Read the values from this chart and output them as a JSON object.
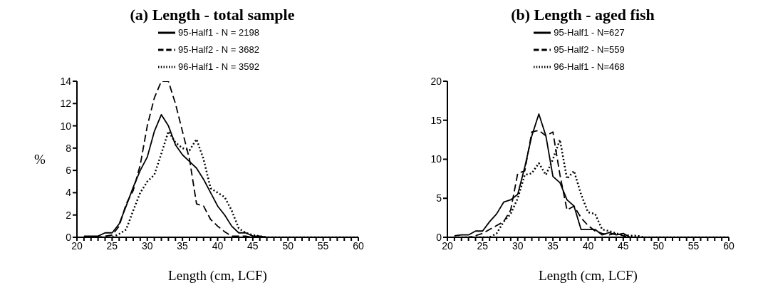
{
  "chart_data": [
    {
      "type": "line",
      "title": "(a) Length - total sample",
      "xlabel": "Length (cm, LCF)",
      "ylabel": "%",
      "x": [
        21,
        22,
        23,
        24,
        25,
        26,
        27,
        28,
        29,
        30,
        31,
        32,
        33,
        34,
        35,
        36,
        37,
        38,
        39,
        40,
        41,
        42,
        43,
        44,
        45,
        46,
        47,
        48,
        49,
        50,
        51,
        52,
        53,
        54,
        55,
        56,
        57,
        58,
        59,
        60
      ],
      "series": [
        {
          "name": "95-Half1 - N = 2198",
          "color": "#000000",
          "line_style": "solid",
          "values": [
            0.1,
            0.1,
            0.1,
            0.4,
            0.4,
            1.2,
            2.8,
            4.5,
            6,
            7.2,
            9.5,
            11,
            10,
            8.3,
            7.4,
            6.8,
            6.2,
            5.2,
            4,
            2.8,
            2,
            1,
            0.4,
            0.4,
            0.1,
            0.1,
            0,
            0,
            0,
            0,
            0,
            0,
            0,
            0,
            0,
            0,
            0,
            0,
            0,
            0
          ]
        },
        {
          "name": "95-Half2 - N = 3682",
          "color": "#000000",
          "line_style": "dashed",
          "values": [
            0,
            0,
            0,
            0.1,
            0.2,
            1,
            3,
            4.2,
            6.5,
            10,
            12.5,
            14,
            14,
            12,
            9.5,
            7,
            3,
            2.8,
            1.6,
            1,
            0.5,
            0.1,
            0.1,
            0.1,
            0,
            0,
            0,
            0,
            0,
            0,
            0,
            0,
            0,
            0,
            0,
            0,
            0,
            0,
            0,
            0
          ]
        },
        {
          "name": "96-Half1 - N = 3592",
          "color": "#000000",
          "line_style": "dotted",
          "values": [
            0,
            0,
            0,
            0,
            0,
            0.3,
            0.7,
            2.4,
            4,
            5,
            5.6,
            7.5,
            9.5,
            8.5,
            8,
            7.8,
            8.8,
            7,
            4.4,
            4,
            3.6,
            2.4,
            0.8,
            0.4,
            0.2,
            0.1,
            0,
            0,
            0,
            0,
            0,
            0,
            0,
            0,
            0,
            0,
            0,
            0,
            0,
            0
          ]
        }
      ],
      "xlim": [
        20,
        60
      ],
      "xticks": [
        20,
        {
          "value": 21,
          "label": null
        },
        {
          "value": 22,
          "label": null
        },
        {
          "value": 23,
          "label": null
        },
        {
          "value": 24,
          "label": null
        },
        25,
        {
          "value": 26,
          "label": null
        },
        {
          "value": 27,
          "label": null
        },
        {
          "value": 28,
          "label": null
        },
        {
          "value": 29,
          "label": null
        },
        30,
        {
          "value": 31,
          "label": null
        },
        {
          "value": 32,
          "label": null
        },
        {
          "value": 33,
          "label": null
        },
        {
          "value": 34,
          "label": null
        },
        35,
        {
          "value": 36,
          "label": null
        },
        {
          "value": 37,
          "label": null
        },
        {
          "value": 38,
          "label": null
        },
        {
          "value": 39,
          "label": null
        },
        40,
        {
          "value": 41,
          "label": null
        },
        {
          "value": 42,
          "label": null
        },
        {
          "value": 43,
          "label": null
        },
        {
          "value": 44,
          "label": null
        },
        45,
        {
          "value": 46,
          "label": null
        },
        {
          "value": 47,
          "label": null
        },
        {
          "value": 48,
          "label": null
        },
        {
          "value": 49,
          "label": null
        },
        50,
        {
          "value": 51,
          "label": null
        },
        {
          "value": 52,
          "label": null
        },
        {
          "value": 53,
          "label": null
        },
        {
          "value": 54,
          "label": null
        },
        55,
        {
          "value": 56,
          "label": null
        },
        {
          "value": 57,
          "label": null
        },
        {
          "value": 58,
          "label": null
        },
        {
          "value": 59,
          "label": null
        },
        60
      ],
      "ylim": [
        0,
        14
      ],
      "yticks": [
        0,
        2,
        4,
        6,
        8,
        10,
        12,
        14
      ],
      "grid": false,
      "legend": "top",
      "marker": "none"
    },
    {
      "type": "line",
      "title": "(b) Length - aged fish",
      "xlabel": "Length (cm, LCF)",
      "x": [
        21,
        22,
        23,
        24,
        25,
        26,
        27,
        28,
        29,
        30,
        31,
        32,
        33,
        34,
        35,
        36,
        37,
        38,
        39,
        40,
        41,
        42,
        43,
        44,
        45,
        46,
        47,
        48,
        49,
        50,
        51,
        52,
        53,
        54,
        55,
        56,
        57,
        58,
        59,
        60
      ],
      "series": [
        {
          "name": "95-Half1 - N=627",
          "color": "#000000",
          "line_style": "solid",
          "values": [
            0.2,
            0.3,
            0.3,
            0.8,
            0.8,
            2,
            3,
            4.5,
            4.8,
            5.5,
            9,
            13,
            15.8,
            13,
            7.8,
            7,
            4.8,
            4,
            1,
            1,
            1,
            0.3,
            0.6,
            0.3,
            0.5,
            0,
            0,
            0,
            0,
            0,
            0,
            0,
            0,
            0,
            0,
            0,
            0,
            0,
            0,
            0
          ]
        },
        {
          "name": "95-Half2 - N=559",
          "color": "#000000",
          "line_style": "dashed",
          "values": [
            0,
            0,
            0,
            0.2,
            0.5,
            1,
            1.5,
            2,
            3.5,
            8.2,
            8.5,
            13.5,
            13.7,
            13,
            13.5,
            8,
            3.5,
            4,
            2.5,
            1.5,
            0.8,
            0.5,
            0.3,
            0.5,
            0.2,
            0,
            0,
            0,
            0,
            0,
            0,
            0,
            0,
            0,
            0,
            0,
            0,
            0,
            0,
            0
          ]
        },
        {
          "name": "96-Half1 - N=468",
          "color": "#000000",
          "line_style": "dotted",
          "values": [
            0,
            0,
            0,
            0,
            0,
            0,
            0.5,
            2,
            3,
            5,
            8,
            8.2,
            9.5,
            8,
            10,
            12.5,
            7.5,
            8.5,
            5.5,
            3.2,
            3,
            1,
            0.8,
            0.5,
            0.3,
            0.2,
            0.2,
            0,
            0,
            0,
            0,
            0,
            0,
            0,
            0,
            0,
            0,
            0,
            0,
            0
          ]
        }
      ],
      "xlim": [
        20,
        60
      ],
      "xticks": [
        20,
        {
          "value": 21,
          "label": null
        },
        {
          "value": 22,
          "label": null
        },
        {
          "value": 23,
          "label": null
        },
        {
          "value": 24,
          "label": null
        },
        25,
        {
          "value": 26,
          "label": null
        },
        {
          "value": 27,
          "label": null
        },
        {
          "value": 28,
          "label": null
        },
        {
          "value": 29,
          "label": null
        },
        30,
        {
          "value": 31,
          "label": null
        },
        {
          "value": 32,
          "label": null
        },
        {
          "value": 33,
          "label": null
        },
        {
          "value": 34,
          "label": null
        },
        35,
        {
          "value": 36,
          "label": null
        },
        {
          "value": 37,
          "label": null
        },
        {
          "value": 38,
          "label": null
        },
        {
          "value": 39,
          "label": null
        },
        40,
        {
          "value": 41,
          "label": null
        },
        {
          "value": 42,
          "label": null
        },
        {
          "value": 43,
          "label": null
        },
        {
          "value": 44,
          "label": null
        },
        45,
        {
          "value": 46,
          "label": null
        },
        {
          "value": 47,
          "label": null
        },
        {
          "value": 48,
          "label": null
        },
        {
          "value": 49,
          "label": null
        },
        50,
        {
          "value": 51,
          "label": null
        },
        {
          "value": 52,
          "label": null
        },
        {
          "value": 53,
          "label": null
        },
        {
          "value": 54,
          "label": null
        },
        55,
        {
          "value": 56,
          "label": null
        },
        {
          "value": 57,
          "label": null
        },
        {
          "value": 58,
          "label": null
        },
        {
          "value": 59,
          "label": null
        },
        60
      ],
      "ylim": [
        0,
        20
      ],
      "yticks": [
        0,
        5,
        10,
        15,
        20
      ],
      "grid": false,
      "legend": "top",
      "marker": "none"
    }
  ]
}
